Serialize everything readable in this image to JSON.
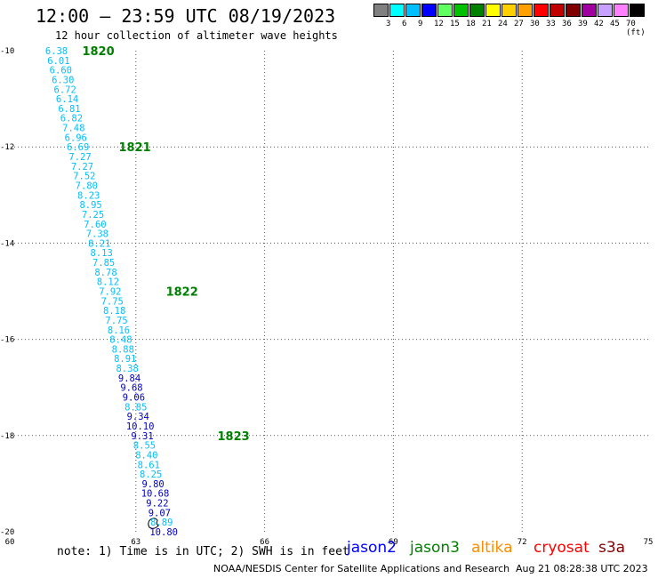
{
  "header": {
    "title": "12:00 – 23:59 UTC 08/19/2023",
    "subtitle": "12 hour collection of altimeter wave heights"
  },
  "color_scale": {
    "colors": [
      "#808080",
      "#00ffff",
      "#00bfff",
      "#0000ff",
      "#60ff60",
      "#00c000",
      "#008000",
      "#ffff00",
      "#ffd000",
      "#ffa000",
      "#ff0000",
      "#c00000",
      "#800000",
      "#a000a0",
      "#c8a0ff",
      "#ff80ff",
      "#000000"
    ],
    "labels": [
      "3",
      "6",
      "9",
      "12",
      "15",
      "18",
      "21",
      "24",
      "27",
      "30",
      "33",
      "36",
      "39",
      "42",
      "45",
      "70 (ft)"
    ]
  },
  "chart_data": {
    "type": "scatter",
    "xlim": [
      60,
      75
    ],
    "ylim": [
      -20,
      -10
    ],
    "x_ticks": [
      "60",
      "63",
      "66",
      "69",
      "72",
      "75"
    ],
    "y_ticks": [
      "-10",
      "-12",
      "-14",
      "-16",
      "-18",
      "-20"
    ],
    "grid": true,
    "points": [
      {
        "x": 61.15,
        "y": -10.0,
        "label": "6.38",
        "color": "#00bfff"
      },
      {
        "x": 61.2,
        "y": -10.2,
        "label": "6.01",
        "color": "#00bfff"
      },
      {
        "x": 61.25,
        "y": -10.4,
        "label": "6.60",
        "color": "#00bfff"
      },
      {
        "x": 61.3,
        "y": -10.6,
        "label": "6.30",
        "color": "#00bfff"
      },
      {
        "x": 61.35,
        "y": -10.8,
        "label": "6.72",
        "color": "#00bfff"
      },
      {
        "x": 61.4,
        "y": -11.0,
        "label": "6.14",
        "color": "#00bfff"
      },
      {
        "x": 61.45,
        "y": -11.2,
        "label": "6.81",
        "color": "#00bfff"
      },
      {
        "x": 61.5,
        "y": -11.4,
        "label": "6.82",
        "color": "#00bfff"
      },
      {
        "x": 61.55,
        "y": -11.6,
        "label": "7.48",
        "color": "#00bfff"
      },
      {
        "x": 61.6,
        "y": -11.8,
        "label": "6.96",
        "color": "#00bfff"
      },
      {
        "x": 61.65,
        "y": -12.0,
        "label": "6.69",
        "color": "#00bfff"
      },
      {
        "x": 61.7,
        "y": -12.2,
        "label": "7.27",
        "color": "#00bfff"
      },
      {
        "x": 61.75,
        "y": -12.4,
        "label": "7.27",
        "color": "#00bfff"
      },
      {
        "x": 61.8,
        "y": -12.6,
        "label": "7.52",
        "color": "#00bfff"
      },
      {
        "x": 61.85,
        "y": -12.8,
        "label": "7.80",
        "color": "#00bfff"
      },
      {
        "x": 61.9,
        "y": -13.0,
        "label": "8.23",
        "color": "#00bfff"
      },
      {
        "x": 61.95,
        "y": -13.2,
        "label": "8.95",
        "color": "#00bfff"
      },
      {
        "x": 62.0,
        "y": -13.4,
        "label": "7.25",
        "color": "#00bfff"
      },
      {
        "x": 62.05,
        "y": -13.6,
        "label": "7.60",
        "color": "#00bfff"
      },
      {
        "x": 62.1,
        "y": -13.8,
        "label": "7.38",
        "color": "#00bfff"
      },
      {
        "x": 62.15,
        "y": -14.0,
        "label": "8.21",
        "color": "#00bfff"
      },
      {
        "x": 62.2,
        "y": -14.2,
        "label": "8.13",
        "color": "#00bfff"
      },
      {
        "x": 62.25,
        "y": -14.4,
        "label": "7.85",
        "color": "#00bfff"
      },
      {
        "x": 62.3,
        "y": -14.6,
        "label": "8.78",
        "color": "#00bfff"
      },
      {
        "x": 62.35,
        "y": -14.8,
        "label": "8.12",
        "color": "#00bfff"
      },
      {
        "x": 62.4,
        "y": -15.0,
        "label": "7.92",
        "color": "#00bfff"
      },
      {
        "x": 62.45,
        "y": -15.2,
        "label": "7.75",
        "color": "#00bfff"
      },
      {
        "x": 62.5,
        "y": -15.4,
        "label": "8.18",
        "color": "#00bfff"
      },
      {
        "x": 62.55,
        "y": -15.6,
        "label": "7.75",
        "color": "#00bfff"
      },
      {
        "x": 62.6,
        "y": -15.8,
        "label": "8.16",
        "color": "#00bfff"
      },
      {
        "x": 62.65,
        "y": -16.0,
        "label": "8.48",
        "color": "#00bfff"
      },
      {
        "x": 62.7,
        "y": -16.2,
        "label": "8.88",
        "color": "#00bfff"
      },
      {
        "x": 62.75,
        "y": -16.4,
        "label": "8.91",
        "color": "#00bfff"
      },
      {
        "x": 62.8,
        "y": -16.6,
        "label": "8.38",
        "color": "#00bfff"
      },
      {
        "x": 62.85,
        "y": -16.8,
        "label": "9.84",
        "color": "#0000c0"
      },
      {
        "x": 62.9,
        "y": -17.0,
        "label": "9.68",
        "color": "#0000c0"
      },
      {
        "x": 62.95,
        "y": -17.2,
        "label": "9.06",
        "color": "#0000c0"
      },
      {
        "x": 63.0,
        "y": -17.4,
        "label": "8.85",
        "color": "#00bfff"
      },
      {
        "x": 63.05,
        "y": -17.6,
        "label": "9.34",
        "color": "#0000c0"
      },
      {
        "x": 63.1,
        "y": -17.8,
        "label": "10.10",
        "color": "#0000c0"
      },
      {
        "x": 63.15,
        "y": -18.0,
        "label": "9.31",
        "color": "#0000c0"
      },
      {
        "x": 63.2,
        "y": -18.2,
        "label": "8.55",
        "color": "#00bfff"
      },
      {
        "x": 63.25,
        "y": -18.4,
        "label": "8.40",
        "color": "#00bfff"
      },
      {
        "x": 63.3,
        "y": -18.6,
        "label": "8.61",
        "color": "#00bfff"
      },
      {
        "x": 63.35,
        "y": -18.8,
        "label": "8.25",
        "color": "#00bfff"
      },
      {
        "x": 63.4,
        "y": -19.0,
        "label": "9.80",
        "color": "#0000c0"
      },
      {
        "x": 63.45,
        "y": -19.2,
        "label": "10.68",
        "color": "#0000c0"
      },
      {
        "x": 63.5,
        "y": -19.4,
        "label": "9.22",
        "color": "#0000c0"
      },
      {
        "x": 63.55,
        "y": -19.6,
        "label": "9.07",
        "color": "#0000c0"
      },
      {
        "x": 63.6,
        "y": -19.8,
        "label": "8.89",
        "color": "#00bfff"
      },
      {
        "x": 63.65,
        "y": -20.0,
        "label": "10.80",
        "color": "#0000c0"
      }
    ],
    "time_labels": [
      {
        "x": 61.75,
        "y": -10.0,
        "label": "1820"
      },
      {
        "x": 62.6,
        "y": -12.0,
        "label": "1821"
      },
      {
        "x": 63.7,
        "y": -15.0,
        "label": "1822"
      },
      {
        "x": 64.9,
        "y": -18.0,
        "label": "1823"
      }
    ],
    "island": {
      "x": 63.4,
      "y": -19.8
    }
  },
  "footer": {
    "note": "note: 1) Time is in UTC; 2) SWH is in feet",
    "satellites": [
      {
        "name": "jason2",
        "color": "#0000ff"
      },
      {
        "name": "jason3",
        "color": "#008000"
      },
      {
        "name": "altika",
        "color": "#ff8c00"
      },
      {
        "name": "cryosat",
        "color": "#ff0000"
      },
      {
        "name": "s3a",
        "color": "#800000"
      }
    ],
    "credit": "NOAA/NESDIS Center for Satellite Applications and Research",
    "timestamp": "Aug 21 08:28:38 UTC 2023"
  }
}
